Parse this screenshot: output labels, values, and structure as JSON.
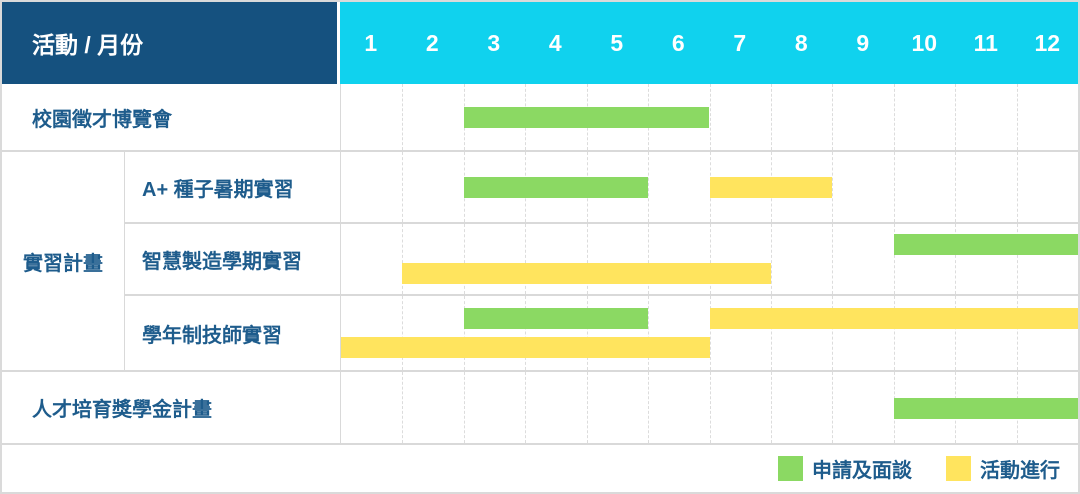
{
  "colors": {
    "header_bg": "#15517F",
    "months_bg": "#10D2EE",
    "apply": "#8BD963",
    "active": "#FFE45E",
    "label_text": "#1E5C8C",
    "grid_line": "#DCDCDC"
  },
  "chart_data": {
    "type": "gantt",
    "title": "活動 / 月份",
    "x_axis_months": [
      "1",
      "2",
      "3",
      "4",
      "5",
      "6",
      "7",
      "8",
      "9",
      "10",
      "11",
      "12"
    ],
    "x_range": [
      1,
      12
    ],
    "legend_position": "bottom-right",
    "legend": [
      {
        "key": "apply",
        "label": "申請及面談",
        "color": "#8BD963"
      },
      {
        "key": "active",
        "label": "活動進行",
        "color": "#FFE45E"
      }
    ],
    "rows": [
      {
        "name": "校園徵才博覽會",
        "lanes": [
          [
            {
              "type": "apply",
              "start": 3,
              "end": 6
            }
          ]
        ]
      },
      {
        "label": "實習計畫",
        "children": [
          {
            "name": "A+ 種子暑期實習",
            "lanes": [
              [
                {
                  "type": "apply",
                  "start": 3,
                  "end": 5
                },
                {
                  "type": "active",
                  "start": 7,
                  "end": 8
                }
              ]
            ]
          },
          {
            "name": "智慧製造學期實習",
            "lanes": [
              [
                {
                  "type": "apply",
                  "start": 10,
                  "end": 12
                }
              ],
              [
                {
                  "type": "active",
                  "start": 2,
                  "end": 7
                }
              ]
            ]
          },
          {
            "name": "學年制技師實習",
            "lanes": [
              [
                {
                  "type": "apply",
                  "start": 3,
                  "end": 5
                },
                {
                  "type": "active",
                  "start": 7,
                  "end": 12
                }
              ],
              [
                {
                  "type": "active",
                  "start": 1,
                  "end": 6
                }
              ]
            ]
          }
        ]
      },
      {
        "name": "人才培育獎學金計畫",
        "lanes": [
          [
            {
              "type": "apply",
              "start": 10,
              "end": 12
            }
          ]
        ]
      }
    ]
  }
}
